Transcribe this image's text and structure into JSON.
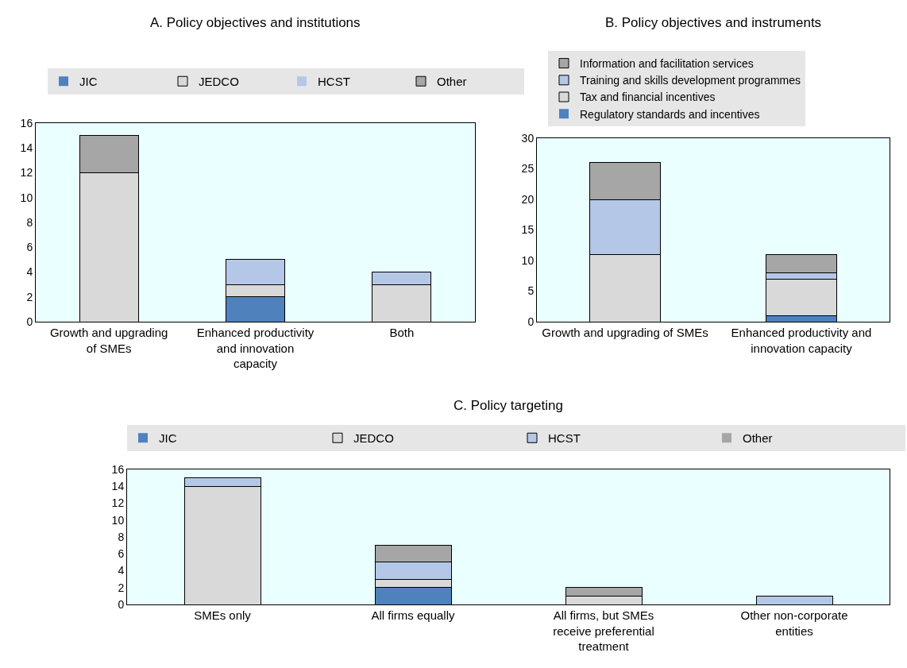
{
  "chart_data": [
    {
      "type": "bar",
      "title": "A. Policy objectives and institutions",
      "categories": [
        "Growth and upgrading of SMEs",
        "Enhanced productivity and innovation capacity",
        "Both"
      ],
      "stacked": true,
      "legend": "top",
      "grid": false,
      "ylim": [
        0,
        16
      ],
      "yticks": [
        0,
        2,
        4,
        6,
        8,
        10,
        12,
        14,
        16
      ],
      "series": [
        {
          "name": "JIC",
          "color": "#4f81bd",
          "values": [
            0,
            2,
            0
          ]
        },
        {
          "name": "JEDCO",
          "color": "#d9d9d9",
          "values": [
            12,
            1,
            3
          ]
        },
        {
          "name": "HCST",
          "color": "#b4c7e7",
          "values": [
            0,
            2,
            1
          ]
        },
        {
          "name": "Other",
          "color": "#a6a6a6",
          "values": [
            3,
            0,
            0
          ]
        }
      ]
    },
    {
      "type": "bar",
      "title": "B. Policy objectives and instruments",
      "categories": [
        "Growth and upgrading of SMEs",
        "Enhanced productivity and innovation capacity"
      ],
      "stacked": true,
      "legend": "top",
      "grid": false,
      "ylim": [
        0,
        30
      ],
      "yticks": [
        0,
        5,
        10,
        15,
        20,
        25,
        30
      ],
      "series": [
        {
          "name": "Regulatory standards and incentives",
          "color": "#4f81bd",
          "values": [
            0,
            1
          ]
        },
        {
          "name": "Tax and financial incentives",
          "color": "#d9d9d9",
          "values": [
            11,
            6
          ]
        },
        {
          "name": "Training and skills development programmes",
          "color": "#b4c7e7",
          "values": [
            9,
            1
          ]
        },
        {
          "name": "Information and facilitation services",
          "color": "#a6a6a6",
          "values": [
            6,
            3
          ]
        }
      ]
    },
    {
      "type": "bar",
      "title": "C. Policy targeting",
      "categories": [
        "SMEs only",
        "All firms equally",
        "All firms, but SMEs receive preferential treatment",
        "Other non-corporate entities"
      ],
      "stacked": true,
      "legend": "top",
      "grid": false,
      "ylim": [
        0,
        16
      ],
      "yticks": [
        0,
        2,
        4,
        6,
        8,
        10,
        12,
        14,
        16
      ],
      "series": [
        {
          "name": "JIC",
          "color": "#4f81bd",
          "values": [
            0,
            2,
            0,
            0
          ]
        },
        {
          "name": "JEDCO",
          "color": "#d9d9d9",
          "values": [
            14,
            1,
            1,
            0
          ]
        },
        {
          "name": "HCST",
          "color": "#b4c7e7",
          "values": [
            1,
            2,
            0,
            1
          ]
        },
        {
          "name": "Other",
          "color": "#a6a6a6",
          "values": [
            0,
            2,
            1,
            0
          ]
        }
      ]
    }
  ]
}
